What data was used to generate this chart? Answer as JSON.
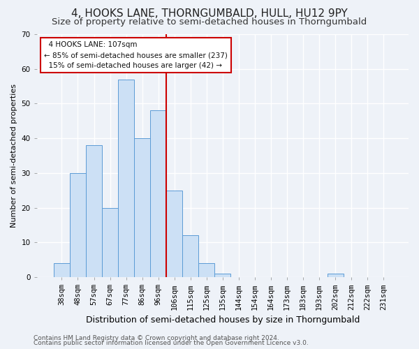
{
  "title": "4, HOOKS LANE, THORNGUMBALD, HULL, HU12 9PY",
  "subtitle": "Size of property relative to semi-detached houses in Thorngumbald",
  "xlabel": "Distribution of semi-detached houses by size in Thorngumbald",
  "ylabel": "Number of semi-detached properties",
  "categories": [
    "38sqm",
    "48sqm",
    "57sqm",
    "67sqm",
    "77sqm",
    "86sqm",
    "96sqm",
    "106sqm",
    "115sqm",
    "125sqm",
    "135sqm",
    "144sqm",
    "154sqm",
    "164sqm",
    "173sqm",
    "183sqm",
    "193sqm",
    "202sqm",
    "212sqm",
    "222sqm",
    "231sqm"
  ],
  "values": [
    4,
    30,
    38,
    20,
    57,
    40,
    48,
    25,
    12,
    4,
    1,
    0,
    0,
    0,
    0,
    0,
    0,
    1,
    0,
    0,
    0
  ],
  "bar_color": "#cce0f5",
  "bar_edge_color": "#5b9bd5",
  "vline_color": "#cc0000",
  "property_size": "107sqm",
  "property_name": "4 HOOKS LANE",
  "pct_smaller": 85,
  "n_smaller": 237,
  "pct_larger": 15,
  "n_larger": 42,
  "annotation_box_color": "#cc0000",
  "ylim": [
    0,
    70
  ],
  "yticks": [
    0,
    10,
    20,
    30,
    40,
    50,
    60,
    70
  ],
  "background_color": "#eef2f8",
  "grid_color": "#ffffff",
  "footer1": "Contains HM Land Registry data © Crown copyright and database right 2024.",
  "footer2": "Contains public sector information licensed under the Open Government Licence v3.0.",
  "title_fontsize": 11,
  "subtitle_fontsize": 9.5,
  "xlabel_fontsize": 9,
  "ylabel_fontsize": 8,
  "tick_fontsize": 7.5,
  "footer_fontsize": 6.5,
  "annot_fontsize": 7.5
}
